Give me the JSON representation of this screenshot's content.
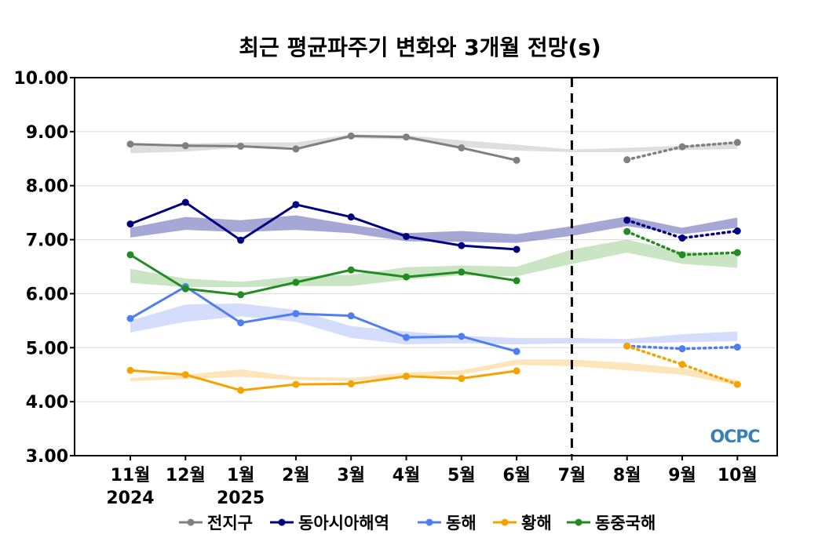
{
  "chart_data": {
    "type": "line",
    "title": "최근 평균파주기 변화와 3개월 전망(s)",
    "xlabel": "",
    "ylabel": "",
    "ylim": [
      3.0,
      10.0
    ],
    "yticks": [
      "3.00",
      "4.00",
      "5.00",
      "6.00",
      "7.00",
      "8.00",
      "9.00",
      "10.00"
    ],
    "categories": [
      "11월",
      "12월",
      "1월",
      "2월",
      "3월",
      "4월",
      "5월",
      "6월",
      "7월",
      "8월",
      "9월",
      "10월"
    ],
    "year_labels": [
      {
        "category": "11월",
        "text": "2024"
      },
      {
        "category": "1월",
        "text": "2025"
      }
    ],
    "divider_after": "7월",
    "grid": "horizontal",
    "legend_position": "bottom",
    "logo": "OCPC",
    "series": [
      {
        "name": "전지구",
        "color": "#808080",
        "band_color": "#d3d3d3",
        "observed": [
          8.77,
          8.74,
          8.73,
          8.68,
          8.92,
          8.9,
          8.7,
          8.47,
          null,
          null,
          null,
          null
        ],
        "forecast": [
          null,
          null,
          null,
          null,
          null,
          null,
          null,
          null,
          null,
          8.48,
          8.72,
          8.8
        ],
        "band_low": [
          8.6,
          8.63,
          8.7,
          8.72,
          8.88,
          8.85,
          8.72,
          8.65,
          8.62,
          8.62,
          8.66,
          8.68
        ],
        "band_high": [
          8.74,
          8.78,
          8.8,
          8.8,
          8.95,
          8.93,
          8.84,
          8.76,
          8.67,
          8.7,
          8.74,
          8.82
        ]
      },
      {
        "name": "동아시아해역",
        "color": "#000080",
        "band_color": "#8a8ac8",
        "observed": [
          7.29,
          7.69,
          6.99,
          7.65,
          7.42,
          7.06,
          6.89,
          6.82,
          null,
          null,
          null,
          null
        ],
        "forecast": [
          null,
          null,
          null,
          null,
          null,
          null,
          null,
          null,
          null,
          7.36,
          7.03,
          7.16
        ],
        "band_low": [
          7.04,
          7.18,
          7.14,
          7.18,
          7.12,
          6.97,
          6.96,
          6.94,
          7.07,
          7.25,
          7.1,
          7.22
        ],
        "band_high": [
          7.22,
          7.42,
          7.36,
          7.45,
          7.28,
          7.12,
          7.16,
          7.1,
          7.25,
          7.43,
          7.22,
          7.41
        ]
      },
      {
        "name": "동해",
        "color": "#4f7ef0",
        "band_color": "#c7d2fb",
        "observed": [
          5.54,
          6.13,
          5.46,
          5.63,
          5.59,
          5.19,
          5.21,
          4.93,
          null,
          null,
          null,
          null
        ],
        "forecast": [
          null,
          null,
          null,
          null,
          null,
          null,
          null,
          null,
          null,
          5.03,
          4.98,
          5.01
        ],
        "band_low": [
          5.28,
          5.48,
          5.58,
          5.48,
          5.18,
          5.06,
          5.08,
          5.06,
          5.08,
          5.08,
          5.1,
          5.12
        ],
        "band_high": [
          5.5,
          5.8,
          5.82,
          5.7,
          5.4,
          5.3,
          5.22,
          5.18,
          5.18,
          5.16,
          5.25,
          5.3
        ]
      },
      {
        "name": "황해",
        "color": "#f5a300",
        "band_color": "#fcdca3",
        "observed": [
          4.58,
          4.5,
          4.21,
          4.32,
          4.33,
          4.47,
          4.43,
          4.57,
          null,
          null,
          null,
          null
        ],
        "forecast": [
          null,
          null,
          null,
          null,
          null,
          null,
          null,
          null,
          null,
          5.03,
          4.69,
          4.32
        ],
        "band_low": [
          4.38,
          4.42,
          4.46,
          4.4,
          4.38,
          4.46,
          4.5,
          4.68,
          4.66,
          4.58,
          4.5,
          4.3
        ],
        "band_high": [
          4.44,
          4.5,
          4.6,
          4.46,
          4.44,
          4.54,
          4.58,
          4.78,
          4.78,
          4.72,
          4.62,
          4.4
        ]
      },
      {
        "name": "동중국해",
        "color": "#228b22",
        "band_color": "#b7dcb0",
        "observed": [
          6.72,
          6.09,
          5.98,
          6.21,
          6.44,
          6.31,
          6.4,
          6.24,
          null,
          null,
          null,
          null
        ],
        "forecast": [
          null,
          null,
          null,
          null,
          null,
          null,
          null,
          null,
          null,
          7.15,
          6.72,
          6.76
        ],
        "band_low": [
          6.2,
          6.12,
          6.12,
          6.14,
          6.14,
          6.26,
          6.34,
          6.32,
          6.55,
          6.76,
          6.55,
          6.48
        ],
        "band_high": [
          6.46,
          6.28,
          6.22,
          6.32,
          6.35,
          6.49,
          6.52,
          6.5,
          6.82,
          7.0,
          6.78,
          6.72
        ]
      }
    ]
  }
}
